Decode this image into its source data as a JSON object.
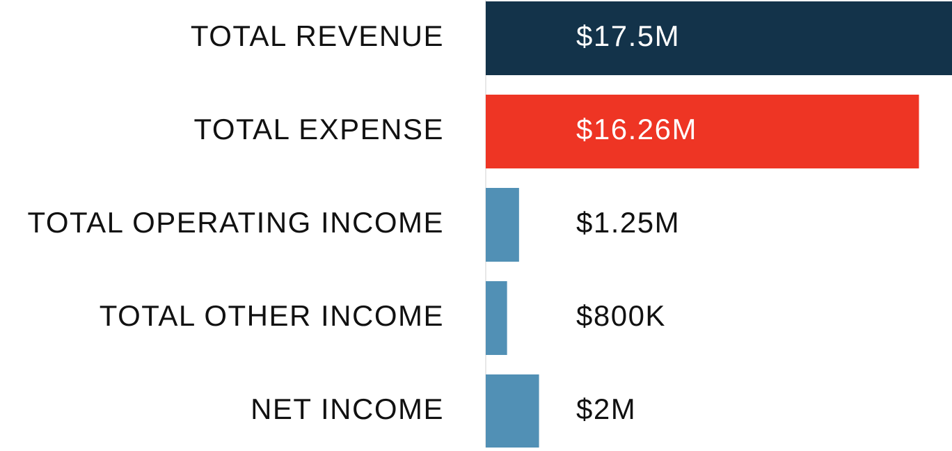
{
  "chart_data": {
    "type": "bar",
    "orientation": "horizontal",
    "categories": [
      "TOTAL REVENUE",
      "TOTAL EXPENSE",
      "TOTAL OPERATING INCOME",
      "TOTAL OTHER INCOME",
      "NET INCOME"
    ],
    "values": [
      17500000,
      16260000,
      1250000,
      800000,
      2000000
    ],
    "value_labels": [
      "$17.5M",
      "$16.26M",
      "$1.25M",
      "$800K",
      "$2M"
    ],
    "colors": [
      "#13334a",
      "#ee3524",
      "#5190b5",
      "#5190b5",
      "#5190b5"
    ],
    "xlim": [
      0,
      17500000
    ]
  }
}
